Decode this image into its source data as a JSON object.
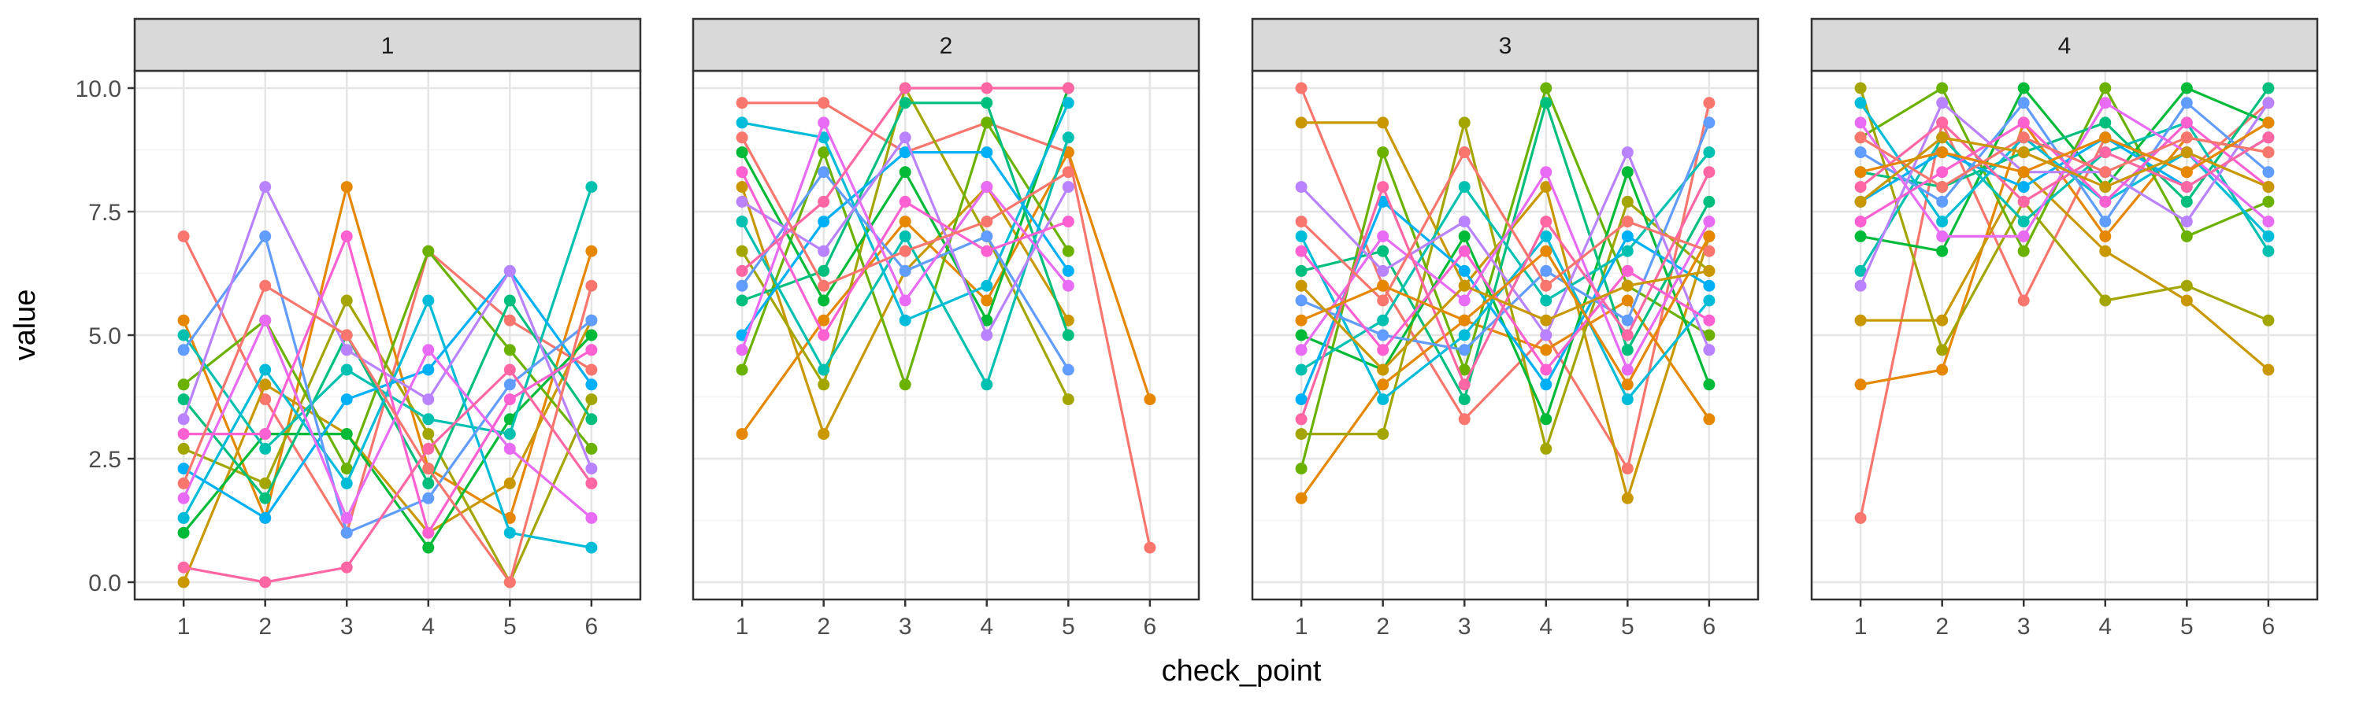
{
  "chart_data": {
    "type": "line",
    "facet_by": "group",
    "xlabel": "check_point",
    "ylabel": "value",
    "x_ticks": [
      1,
      2,
      3,
      4,
      5,
      6
    ],
    "y_ticks": [
      0.0,
      2.5,
      5.0,
      7.5,
      10.0
    ],
    "y_tick_labels": [
      "0.0",
      "2.5",
      "5.0",
      "7.5",
      "10.0"
    ],
    "ylim": [
      -0.35,
      10.35
    ],
    "xlim": [
      0.4,
      6.6
    ],
    "grid": true,
    "legend": "none",
    "markers": true,
    "palette": [
      "#F8766D",
      "#E58700",
      "#C99800",
      "#A3A500",
      "#6BB100",
      "#00BA38",
      "#00BF7D",
      "#00C0AF",
      "#00BCD8",
      "#00B0F6",
      "#619CFF",
      "#B983FF",
      "#E76BF3",
      "#FD61D1",
      "#FF67A4"
    ],
    "panels": [
      {
        "label": "1",
        "series": [
          {
            "values": [
              7.0,
              3.7,
              1.0,
              6.7,
              5.3,
              4.3
            ]
          },
          {
            "values": [
              5.3,
              1.3,
              8.0,
              2.3,
              1.3,
              6.7
            ]
          },
          {
            "values": [
              0.0,
              4.0,
              3.0,
              1.0,
              2.0,
              5.3
            ]
          },
          {
            "values": [
              2.7,
              2.0,
              5.7,
              3.0,
              0.0,
              3.7
            ]
          },
          {
            "values": [
              4.0,
              5.3,
              2.3,
              6.7,
              4.7,
              2.7
            ]
          },
          {
            "values": [
              1.0,
              3.0,
              3.0,
              0.7,
              3.3,
              5.0
            ]
          },
          {
            "values": [
              3.7,
              1.7,
              5.0,
              2.0,
              5.7,
              3.3
            ]
          },
          {
            "values": [
              5.0,
              2.7,
              4.3,
              3.3,
              3.0,
              8.0
            ]
          },
          {
            "values": [
              1.3,
              4.3,
              2.0,
              5.7,
              1.0,
              0.7
            ]
          },
          {
            "values": [
              2.3,
              1.3,
              3.7,
              4.3,
              6.3,
              4.0
            ]
          },
          {
            "values": [
              4.7,
              7.0,
              1.0,
              1.7,
              4.0,
              5.3
            ]
          },
          {
            "values": [
              3.3,
              8.0,
              4.7,
              3.7,
              6.3,
              2.3
            ]
          },
          {
            "values": [
              1.7,
              5.3,
              1.3,
              4.7,
              2.7,
              1.3
            ]
          },
          {
            "values": [
              3.0,
              3.0,
              7.0,
              1.0,
              3.7,
              4.7
            ]
          },
          {
            "values": [
              0.3,
              0.0,
              0.3,
              2.7,
              4.3,
              2.0
            ]
          },
          {
            "values": [
              2.0,
              6.0,
              5.0,
              2.3,
              0.0,
              6.0
            ]
          }
        ]
      },
      {
        "label": "2",
        "series": [
          {
            "values": [
              9.7,
              9.7,
              8.7,
              9.3,
              8.7,
              0.7
            ]
          },
          {
            "values": [
              3.0,
              5.3,
              7.3,
              5.7,
              8.7,
              3.7
            ]
          },
          {
            "values": [
              8.0,
              3.0,
              6.3,
              8.0,
              5.3,
              null
            ]
          },
          {
            "values": [
              6.7,
              4.0,
              10.0,
              7.0,
              3.7,
              null
            ]
          },
          {
            "values": [
              4.3,
              8.7,
              4.0,
              9.3,
              6.7,
              null
            ]
          },
          {
            "values": [
              8.7,
              5.7,
              8.3,
              5.3,
              10.0,
              null
            ]
          },
          {
            "values": [
              5.7,
              6.3,
              9.7,
              9.7,
              5.0,
              null
            ]
          },
          {
            "values": [
              7.3,
              4.3,
              7.0,
              4.0,
              9.0,
              null
            ]
          },
          {
            "values": [
              9.3,
              9.0,
              5.3,
              6.0,
              9.7,
              null
            ]
          },
          {
            "values": [
              5.0,
              7.3,
              8.7,
              8.7,
              6.3,
              null
            ]
          },
          {
            "values": [
              6.0,
              8.3,
              6.3,
              7.0,
              4.3,
              null
            ]
          },
          {
            "values": [
              7.7,
              6.7,
              9.0,
              5.0,
              8.0,
              null
            ]
          },
          {
            "values": [
              4.7,
              9.3,
              5.7,
              8.0,
              6.0,
              null
            ]
          },
          {
            "values": [
              8.3,
              5.0,
              7.7,
              6.7,
              7.3,
              null
            ]
          },
          {
            "values": [
              6.3,
              7.7,
              10.0,
              10.0,
              10.0,
              null
            ]
          },
          {
            "values": [
              9.0,
              6.0,
              6.7,
              7.3,
              8.3,
              null
            ]
          }
        ]
      },
      {
        "label": "3",
        "series": [
          {
            "values": [
              10.0,
              6.0,
              3.3,
              5.0,
              2.3,
              9.7
            ]
          },
          {
            "values": [
              1.7,
              4.0,
              5.3,
              4.7,
              5.7,
              3.3
            ]
          },
          {
            "values": [
              9.3,
              9.3,
              6.0,
              8.0,
              1.7,
              7.0
            ]
          },
          {
            "values": [
              3.0,
              3.0,
              9.3,
              2.7,
              7.7,
              6.3
            ]
          },
          {
            "values": [
              2.3,
              8.7,
              4.3,
              10.0,
              6.0,
              5.0
            ]
          },
          {
            "values": [
              5.0,
              4.3,
              7.0,
              3.3,
              8.3,
              4.0
            ]
          },
          {
            "values": [
              6.3,
              6.7,
              3.7,
              9.7,
              4.7,
              7.7
            ]
          },
          {
            "values": [
              4.3,
              5.3,
              8.0,
              5.7,
              6.7,
              8.7
            ]
          },
          {
            "values": [
              7.0,
              3.7,
              5.0,
              7.0,
              3.7,
              5.7
            ]
          },
          {
            "values": [
              3.7,
              7.7,
              6.3,
              4.0,
              7.0,
              6.0
            ]
          },
          {
            "values": [
              5.7,
              5.0,
              4.7,
              6.3,
              5.3,
              9.3
            ]
          },
          {
            "values": [
              8.0,
              6.3,
              7.3,
              5.0,
              8.7,
              4.7
            ]
          },
          {
            "values": [
              4.7,
              7.0,
              5.7,
              8.3,
              4.3,
              7.3
            ]
          },
          {
            "values": [
              6.7,
              4.7,
              6.7,
              4.3,
              6.3,
              5.3
            ]
          },
          {
            "values": [
              3.3,
              8.0,
              4.0,
              7.3,
              5.0,
              8.3
            ]
          },
          {
            "values": [
              7.3,
              5.7,
              8.7,
              6.0,
              7.3,
              6.7
            ]
          },
          {
            "values": [
              5.3,
              6.0,
              5.3,
              6.7,
              4.0,
              7.0
            ]
          },
          {
            "values": [
              6.0,
              4.3,
              6.0,
              5.3,
              6.0,
              6.3
            ]
          }
        ]
      },
      {
        "label": "4",
        "series": [
          {
            "values": [
              1.3,
              9.3,
              5.7,
              9.0,
              8.3,
              9.7
            ]
          },
          {
            "values": [
              4.0,
              4.3,
              9.3,
              7.0,
              9.0,
              8.7
            ]
          },
          {
            "values": [
              5.3,
              5.3,
              8.3,
              6.7,
              5.7,
              4.3
            ]
          },
          {
            "values": [
              10.0,
              4.7,
              7.7,
              5.7,
              6.0,
              5.3
            ]
          },
          {
            "values": [
              9.0,
              10.0,
              6.7,
              10.0,
              7.0,
              7.7
            ]
          },
          {
            "values": [
              7.0,
              6.7,
              10.0,
              8.0,
              10.0,
              9.3
            ]
          },
          {
            "values": [
              8.3,
              8.0,
              8.7,
              9.3,
              7.7,
              10.0
            ]
          },
          {
            "values": [
              6.3,
              9.0,
              7.3,
              8.7,
              9.3,
              6.7
            ]
          },
          {
            "values": [
              9.7,
              7.3,
              9.0,
              7.7,
              8.7,
              7.0
            ]
          },
          {
            "values": [
              7.7,
              8.7,
              8.0,
              9.0,
              8.0,
              9.0
            ]
          },
          {
            "values": [
              8.7,
              7.7,
              9.7,
              7.3,
              9.7,
              8.3
            ]
          },
          {
            "values": [
              6.0,
              9.7,
              8.3,
              8.3,
              7.3,
              9.7
            ]
          },
          {
            "values": [
              9.3,
              7.0,
              7.0,
              9.7,
              8.7,
              7.3
            ]
          },
          {
            "values": [
              7.3,
              8.3,
              9.3,
              7.7,
              9.3,
              8.0
            ]
          },
          {
            "values": [
              8.0,
              9.3,
              7.7,
              8.7,
              8.0,
              9.0
            ]
          },
          {
            "values": [
              9.0,
              8.0,
              9.0,
              8.3,
              9.0,
              8.7
            ]
          },
          {
            "values": [
              8.3,
              8.7,
              8.3,
              9.0,
              8.3,
              9.3
            ]
          },
          {
            "values": [
              7.7,
              9.0,
              8.7,
              8.0,
              8.7,
              8.0
            ]
          }
        ]
      }
    ]
  }
}
